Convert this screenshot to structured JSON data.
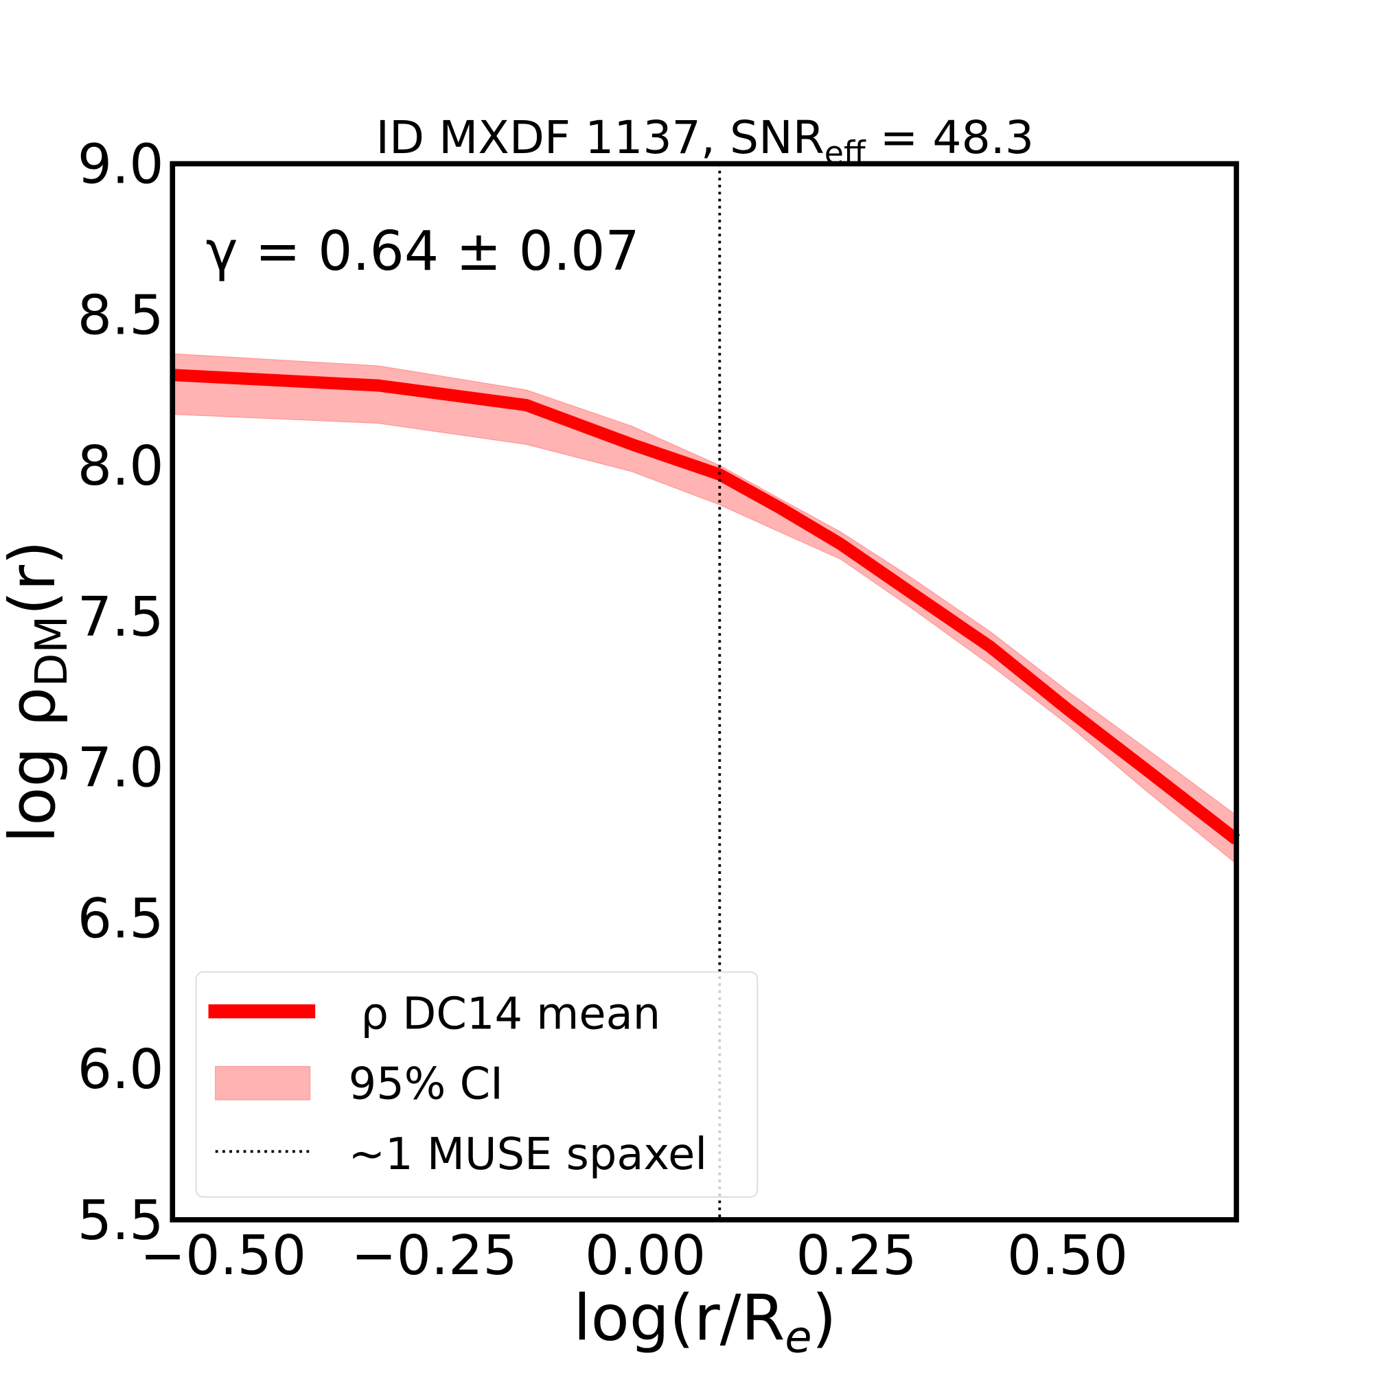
{
  "chart_data": {
    "type": "line",
    "title": "ID MXDF 1137, SNR",
    "title_sub": "eff",
    "title_value": " = 48.3",
    "annotation": "γ = 0.64 ± 0.07",
    "xlabel": "log(r/R",
    "xlabel_sub": "e",
    "xlabel_end": ")",
    "ylabel": "log ρ",
    "ylabel_sub": "DM",
    "ylabel_end": "(r)",
    "xlim": [
      -0.56,
      0.7
    ],
    "ylim": [
      5.5,
      9.0
    ],
    "xticks": [
      -0.5,
      -0.25,
      0.0,
      0.25,
      0.5
    ],
    "xtick_labels": [
      "−0.50",
      "−0.25",
      "0.00",
      "0.25",
      "0.50"
    ],
    "yticks": [
      5.5,
      6.0,
      6.5,
      7.0,
      7.5,
      8.0,
      8.5,
      9.0
    ],
    "ytick_labels": [
      "5.5",
      "6.0",
      "6.5",
      "7.0",
      "7.5",
      "8.0",
      "8.5",
      "9.0"
    ],
    "grid": false,
    "legend_position": "lower-left",
    "x": [
      -0.56,
      -0.316,
      -0.141,
      -0.016,
      0.088,
      0.159,
      0.231,
      0.314,
      0.408,
      0.501,
      0.594,
      0.7
    ],
    "series": [
      {
        "name": "ρ DC14 mean",
        "color": "#ff0000",
        "values": [
          8.3,
          8.265,
          8.2,
          8.07,
          7.97,
          7.86,
          7.74,
          7.58,
          7.4,
          7.19,
          6.99,
          6.76
        ]
      },
      {
        "name": "95% CI",
        "color": "#ffb3b3",
        "upper": [
          8.37,
          8.33,
          8.25,
          8.13,
          8.0,
          7.89,
          7.78,
          7.63,
          7.45,
          7.25,
          7.06,
          6.84
        ],
        "lower": [
          8.17,
          8.14,
          8.07,
          7.98,
          7.87,
          7.78,
          7.69,
          7.53,
          7.34,
          7.14,
          6.92,
          6.68
        ]
      }
    ],
    "vline": {
      "x": 0.088,
      "name": "~1 MUSE spaxel",
      "style": "dotted"
    },
    "legend": [
      "ρ DC14 mean",
      "95% CI",
      "~1 MUSE spaxel"
    ]
  }
}
